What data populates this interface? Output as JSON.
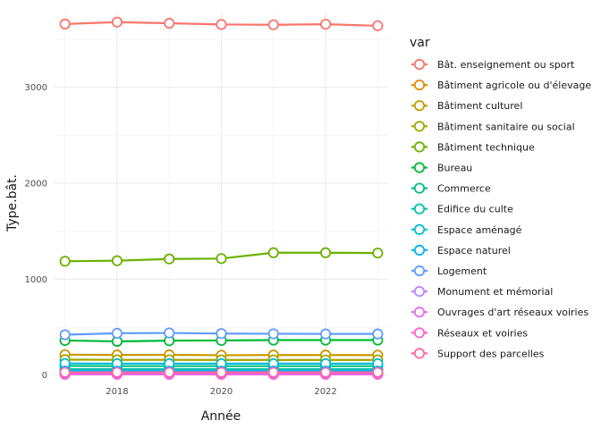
{
  "chart_data": {
    "type": "line",
    "title": "",
    "xlabel": "Année",
    "ylabel": "Type.bât.",
    "xlim": [
      2016.8,
      2023.2
    ],
    "ylim": [
      -60,
      3780
    ],
    "xticks": [
      2018,
      2020,
      2022
    ],
    "yticks": [
      0,
      1000,
      2000,
      3000
    ],
    "grid": true,
    "legend": {
      "title": "var",
      "placement": "right"
    },
    "x": [
      2017,
      2018,
      2019,
      2020,
      2021,
      2022,
      2023
    ],
    "series": [
      {
        "name": "Bât. enseignement ou sport",
        "color": "#F8766D",
        "values": [
          3660,
          3680,
          3668,
          3655,
          3652,
          3658,
          3642
        ]
      },
      {
        "name": "Bâtiment agricole ou d'élevage",
        "color": "#E58700",
        "values": [
          10,
          10,
          10,
          10,
          10,
          10,
          10
        ]
      },
      {
        "name": "Bâtiment culturel",
        "color": "#C99800",
        "values": [
          212,
          209,
          210,
          206,
          208,
          208,
          207
        ]
      },
      {
        "name": "Bâtiment sanitaire ou social",
        "color": "#A3A500",
        "values": [
          160,
          158,
          158,
          157,
          157,
          157,
          157
        ]
      },
      {
        "name": "Bâtiment technique",
        "color": "#6BB100",
        "values": [
          1186,
          1192,
          1210,
          1214,
          1275,
          1275,
          1272
        ]
      },
      {
        "name": "Bureau",
        "color": "#00BA38",
        "values": [
          360,
          350,
          358,
          360,
          364,
          364,
          364
        ]
      },
      {
        "name": "Commerce",
        "color": "#00BF7D",
        "values": [
          95,
          92,
          92,
          92,
          92,
          92,
          92
        ]
      },
      {
        "name": "Edifice du culte",
        "color": "#00C0AF",
        "values": [
          60,
          60,
          60,
          60,
          60,
          60,
          60
        ]
      },
      {
        "name": "Espace aménagé",
        "color": "#00BCD8",
        "values": [
          120,
          118,
          118,
          118,
          118,
          118,
          118
        ]
      },
      {
        "name": "Espace naturel",
        "color": "#00B0F6",
        "values": [
          40,
          40,
          40,
          40,
          40,
          40,
          40
        ]
      },
      {
        "name": "Logement",
        "color": "#619CFF",
        "values": [
          420,
          435,
          438,
          432,
          430,
          428,
          428
        ]
      },
      {
        "name": "Monument et mémorial",
        "color": "#B983FF",
        "values": [
          12,
          12,
          12,
          12,
          12,
          12,
          12
        ]
      },
      {
        "name": "Ouvrages d'art réseaux voiries",
        "color": "#E76BF3",
        "values": [
          6,
          6,
          6,
          6,
          6,
          6,
          6
        ]
      },
      {
        "name": "Réseaux et voiries",
        "color": "#FD61D1",
        "values": [
          18,
          18,
          18,
          18,
          18,
          18,
          18
        ]
      },
      {
        "name": "Support des parcelles",
        "color": "#FF67A4",
        "values": [
          28,
          28,
          28,
          28,
          28,
          28,
          28
        ]
      }
    ]
  }
}
